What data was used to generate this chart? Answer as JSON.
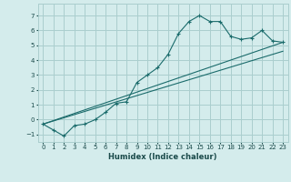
{
  "xlabel": "Humidex (Indice chaleur)",
  "ylabel": "",
  "background_color": "#d4ecec",
  "grid_color": "#aacece",
  "line_color": "#1a6b6b",
  "xlim": [
    -0.5,
    23.5
  ],
  "ylim": [
    -1.5,
    7.8
  ],
  "xticks": [
    0,
    1,
    2,
    3,
    4,
    5,
    6,
    7,
    8,
    9,
    10,
    11,
    12,
    13,
    14,
    15,
    16,
    17,
    18,
    19,
    20,
    21,
    22,
    23
  ],
  "yticks": [
    -1,
    0,
    1,
    2,
    3,
    4,
    5,
    6,
    7
  ],
  "main_x": [
    0,
    1,
    2,
    3,
    4,
    5,
    6,
    7,
    8,
    9,
    10,
    11,
    12,
    13,
    14,
    15,
    16,
    17,
    18,
    19,
    20,
    21,
    22,
    23
  ],
  "main_y": [
    -0.3,
    -0.7,
    -1.1,
    -0.4,
    -0.3,
    0.0,
    0.5,
    1.1,
    1.2,
    2.5,
    3.0,
    3.5,
    4.4,
    5.8,
    6.6,
    7.0,
    6.6,
    6.6,
    5.6,
    5.4,
    5.5,
    6.0,
    5.3,
    5.2
  ],
  "line1_x": [
    0,
    23
  ],
  "line1_y": [
    -0.3,
    5.2
  ],
  "line2_x": [
    0,
    23
  ],
  "line2_y": [
    -0.3,
    4.6
  ]
}
